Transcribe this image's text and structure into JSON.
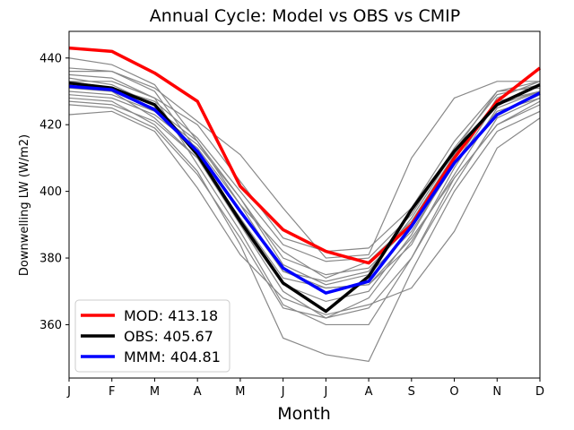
{
  "chart_data": {
    "type": "line",
    "title": "Annual Cycle: Model vs OBS vs CMIP",
    "xlabel": "Month",
    "ylabel": "Downwelling LW (W/m2)",
    "categories": [
      "J",
      "F",
      "M",
      "A",
      "M",
      "J",
      "J",
      "A",
      "S",
      "O",
      "N",
      "D"
    ],
    "ylim": [
      344,
      448
    ],
    "yticks": [
      360,
      380,
      400,
      420,
      440
    ],
    "grid": false,
    "legend_position": "lower-left",
    "series": [
      {
        "name": "MOD: 413.18",
        "color": "#ff0000",
        "values": [
          443,
          442,
          435.5,
          427,
          401.5,
          388.5,
          382,
          378.5,
          390,
          410,
          427,
          437
        ]
      },
      {
        "name": "OBS: 405.67",
        "color": "#000000",
        "values": [
          432.5,
          431,
          426,
          411,
          391,
          372.5,
          364,
          374.5,
          394.5,
          412,
          426,
          432
        ]
      },
      {
        "name": "MMM: 404.81",
        "color": "#0000ff",
        "values": [
          431.5,
          430.5,
          424.5,
          412,
          394,
          377,
          369.5,
          373,
          389.5,
          408.5,
          423,
          429.5
        ]
      }
    ],
    "ensemble": {
      "color": "#888888",
      "members": [
        [
          440,
          438,
          432,
          415,
          398,
          378,
          372,
          375,
          388,
          408,
          428,
          433
        ],
        [
          437,
          436,
          430,
          412,
          390,
          370,
          362,
          368,
          385,
          405,
          425,
          430
        ],
        [
          435,
          434,
          428,
          408,
          388,
          366,
          360,
          360,
          380,
          402,
          422,
          428
        ],
        [
          432,
          430,
          422,
          410,
          392,
          374,
          371,
          372,
          386,
          404,
          420,
          426
        ],
        [
          430,
          429,
          424,
          414,
          398,
          380,
          375,
          377,
          390,
          408,
          424,
          428
        ],
        [
          428,
          427,
          420,
          406,
          384,
          356,
          351,
          349,
          376,
          400,
          418,
          424
        ],
        [
          426,
          425,
          419,
          405,
          386,
          365,
          362,
          365,
          380,
          404,
          420,
          427
        ],
        [
          434,
          432,
          426,
          412,
          394,
          376,
          373,
          376,
          392,
          412,
          430,
          431
        ],
        [
          433,
          433,
          428,
          420,
          403,
          386,
          382,
          383,
          395,
          415,
          430,
          433
        ],
        [
          429,
          428,
          423,
          413,
          396,
          376,
          371,
          372,
          384,
          407,
          427,
          430
        ],
        [
          436,
          436,
          431,
          421,
          411,
          395,
          380,
          381,
          410,
          428,
          433,
          433
        ],
        [
          423,
          424,
          418,
          401,
          381,
          368,
          363,
          366,
          371,
          388,
          413,
          422
        ],
        [
          431,
          430,
          425,
          415,
          396,
          382,
          374,
          379,
          391,
          411,
          426,
          430
        ],
        [
          427,
          426,
          421,
          410,
          390,
          372,
          367,
          370,
          387,
          409,
          423,
          429
        ],
        [
          433,
          431,
          427,
          416,
          400,
          384,
          379,
          380,
          393,
          413,
          429,
          432
        ]
      ]
    }
  }
}
